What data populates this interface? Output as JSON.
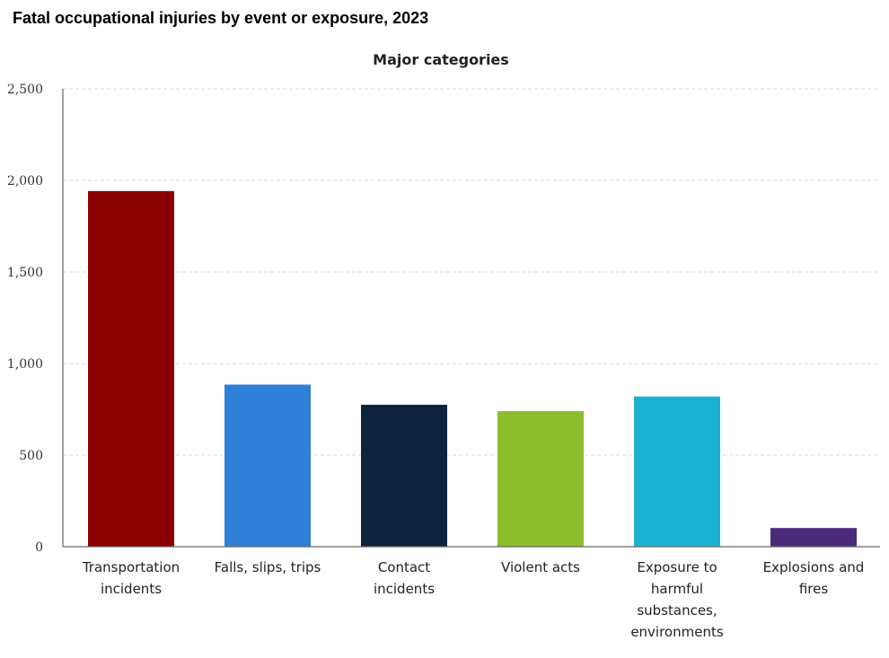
{
  "title": "Fatal occupational injuries by event or exposure, 2023",
  "chart_data": {
    "type": "bar",
    "title": "Fatal occupational injuries by event or exposure, 2023",
    "subtitle": "Major categories",
    "xlabel": "",
    "ylabel": "",
    "ylim": [
      0,
      2500
    ],
    "yticks": [
      0,
      500,
      1000,
      1500,
      2000,
      2500
    ],
    "ytick_labels": [
      "0",
      "500",
      "1,000",
      "1,500",
      "2,000",
      "2,500"
    ],
    "grid": true,
    "categories": [
      [
        "Transportation",
        "incidents"
      ],
      [
        "Falls, slips, trips"
      ],
      [
        "Contact",
        "incidents"
      ],
      [
        "Violent acts"
      ],
      [
        "Exposure to",
        "harmful",
        "substances,",
        "environments"
      ],
      [
        "Explosions and",
        "fires"
      ]
    ],
    "values": [
      1942,
      885,
      775,
      740,
      820,
      102
    ],
    "colors": [
      "#8b0000",
      "#2f7fd6",
      "#0d233e",
      "#8cbd2a",
      "#1cb0d0",
      "#4b2a7b"
    ]
  }
}
